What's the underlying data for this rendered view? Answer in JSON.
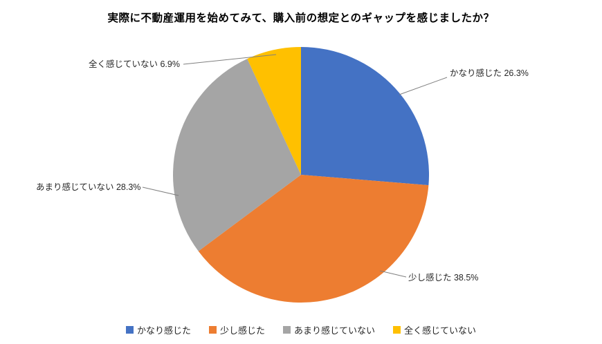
{
  "chart_data": {
    "type": "pie",
    "title": "実際に不動産運用を始めてみて、購入前の想定とのギャップを感じましたか？",
    "categories": [
      "かなり感じた",
      "少し感じた",
      "あまり感じていない",
      "全く感じていない"
    ],
    "values": [
      26.3,
      38.5,
      28.3,
      6.9
    ],
    "unit": "%",
    "colors": [
      "#4472C4",
      "#ED7D31",
      "#A5A5A5",
      "#FFC000"
    ],
    "labels": [
      "かなり感じた 26.3%",
      "少し感じた 38.5%",
      "あまり感じていない 28.3%",
      "全く感じていない 6.9%"
    ],
    "start_angle": 0,
    "direction": "clockwise",
    "legend_position": "bottom",
    "grid": false
  },
  "legend": {
    "items": [
      {
        "label": "かなり感じた",
        "color": "#4472C4"
      },
      {
        "label": "少し感じた",
        "color": "#ED7D31"
      },
      {
        "label": "あまり感じていない",
        "color": "#A5A5A5"
      },
      {
        "label": "全く感じていない",
        "color": "#FFC000"
      }
    ]
  }
}
